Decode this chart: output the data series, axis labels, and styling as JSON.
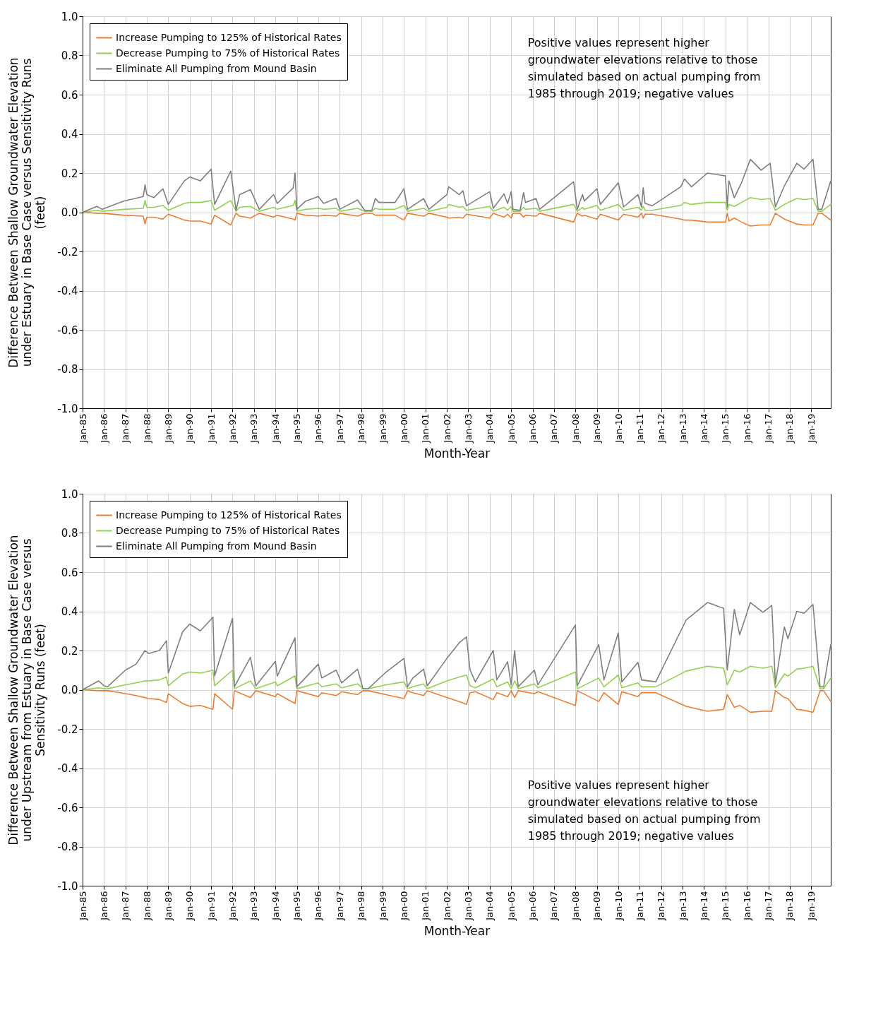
{
  "chart_data": [
    {
      "type": "line",
      "ylabel": "Difference Between Shallow Groundwater Elevation\nunder Estuary in Base Case versus Sensitivity Runs\n(feet)",
      "xlabel": "Month-Year",
      "annotations": [
        "Positive values represent higher\ngroundwater elevations relative to those\nsimulated based on actual pumping from\n1985 through 2019; negative values"
      ],
      "legend": "top left",
      "grid": true,
      "ylim": [
        -1,
        1
      ],
      "yticks": [
        {
          "value": -1,
          "label": "-1.0"
        },
        {
          "value": -0.8,
          "label": "-0.8"
        },
        {
          "value": -0.6,
          "label": "-0.6"
        },
        {
          "value": -0.4,
          "label": "-0.4"
        },
        {
          "value": -0.2,
          "label": "-0.2"
        },
        {
          "value": 0,
          "label": "0.0"
        },
        {
          "value": 0.2,
          "label": "0.2"
        },
        {
          "value": 0.4,
          "label": "0.4"
        },
        {
          "value": 0.6,
          "label": "0.6"
        },
        {
          "value": 0.8,
          "label": "0.8"
        },
        {
          "value": 1,
          "label": "1.0"
        }
      ],
      "xlim": [
        "1985-01",
        "2019-12"
      ],
      "xticks": [
        {
          "value": "1985-01",
          "label": "Jan-85"
        },
        {
          "value": "1986-01",
          "label": "Jan-86"
        },
        {
          "value": "1987-01",
          "label": "Jan-87"
        },
        {
          "value": "1988-01",
          "label": "Jan-88"
        },
        {
          "value": "1989-01",
          "label": "Jan-89"
        },
        {
          "value": "1990-01",
          "label": "Jan-90"
        },
        {
          "value": "1991-01",
          "label": "Jan-91"
        },
        {
          "value": "1992-01",
          "label": "Jan-92"
        },
        {
          "value": "1993-01",
          "label": "Jan-93"
        },
        {
          "value": "1994-01",
          "label": "Jan-94"
        },
        {
          "value": "1995-01",
          "label": "Jan-95"
        },
        {
          "value": "1996-01",
          "label": "Jan-96"
        },
        {
          "value": "1997-01",
          "label": "Jan-97"
        },
        {
          "value": "1998-01",
          "label": "Jan-98"
        },
        {
          "value": "1999-01",
          "label": "Jan-99"
        },
        {
          "value": "2000-01",
          "label": "Jan-00"
        },
        {
          "value": "2001-01",
          "label": "Jan-01"
        },
        {
          "value": "2002-01",
          "label": "Jan-02"
        },
        {
          "value": "2003-01",
          "label": "Jan-03"
        },
        {
          "value": "2004-01",
          "label": "Jan-04"
        },
        {
          "value": "2005-01",
          "label": "Jan-05"
        },
        {
          "value": "2006-01",
          "label": "Jan-06"
        },
        {
          "value": "2007-01",
          "label": "Jan-07"
        },
        {
          "value": "2008-01",
          "label": "Jan-08"
        },
        {
          "value": "2009-01",
          "label": "Jan-09"
        },
        {
          "value": "2010-01",
          "label": "Jan-10"
        },
        {
          "value": "2011-01",
          "label": "Jan-11"
        },
        {
          "value": "2012-01",
          "label": "Jan-12"
        },
        {
          "value": "2013-01",
          "label": "Jan-13"
        },
        {
          "value": "2014-01",
          "label": "Jan-14"
        },
        {
          "value": "2015-01",
          "label": "Jan-15"
        },
        {
          "value": "2016-01",
          "label": "Jan-16"
        },
        {
          "value": "2017-01",
          "label": "Jan-17"
        },
        {
          "value": "2018-01",
          "label": "Jan-18"
        },
        {
          "value": "2019-01",
          "label": "Jan-19"
        }
      ],
      "x": [
        "1985-01",
        "1985-09",
        "1985-12",
        "1986-12",
        "1987-11",
        "1987-12",
        "1988-01",
        "1988-05",
        "1988-10",
        "1989-01",
        "1989-10",
        "1990-01",
        "1990-07",
        "1991-01",
        "1991-03",
        "1991-12",
        "1992-03",
        "1992-05",
        "1992-11",
        "1993-04",
        "1993-12",
        "1994-02",
        "1994-11",
        "1994-12",
        "1995-01",
        "1995-06",
        "1996-01",
        "1996-04",
        "1996-11",
        "1997-01",
        "1997-11",
        "1998-03",
        "1998-07",
        "1998-09",
        "1998-11",
        "1999-08",
        "2000-01",
        "2000-03",
        "2000-12",
        "2001-03",
        "2002-01",
        "2002-02",
        "2002-08",
        "2002-10",
        "2002-12",
        "2004-01",
        "2004-03",
        "2004-09",
        "2004-11",
        "2005-01",
        "2005-02",
        "2005-06",
        "2005-08",
        "2005-09",
        "2006-03",
        "2006-05",
        "2007-12",
        "2008-02",
        "2008-05",
        "2008-06",
        "2009-01",
        "2009-03",
        "2010-01",
        "2010-04",
        "2010-12",
        "2011-02",
        "2011-03",
        "2011-04",
        "2011-08",
        "2012-12",
        "2013-02",
        "2013-06",
        "2014-03",
        "2015-01",
        "2015-02",
        "2015-03",
        "2015-06",
        "2015-10",
        "2016-03",
        "2016-09",
        "2017-02",
        "2017-05",
        "2017-10",
        "2018-05",
        "2018-09",
        "2019-02",
        "2019-05",
        "2019-07",
        "2019-12"
      ],
      "series": [
        {
          "name": "Increase Pumping to 125% of Historical Rates",
          "color": "#ed7d31",
          "values": [
            0,
            -0.005,
            -0.005,
            -0.015,
            -0.02,
            -0.06,
            -0.025,
            -0.025,
            -0.035,
            -0.01,
            -0.04,
            -0.045,
            -0.045,
            -0.06,
            -0.015,
            -0.065,
            -0.005,
            -0.02,
            -0.03,
            -0.005,
            -0.025,
            -0.015,
            -0.035,
            -0.04,
            -0.005,
            -0.015,
            -0.02,
            -0.015,
            -0.02,
            -0.005,
            -0.02,
            -0.005,
            -0.005,
            -0.015,
            -0.015,
            -0.015,
            -0.04,
            -0.005,
            -0.02,
            -0.005,
            -0.025,
            -0.03,
            -0.025,
            -0.03,
            -0.01,
            -0.03,
            -0.005,
            -0.025,
            -0.01,
            -0.03,
            -0.005,
            -0.005,
            -0.025,
            -0.015,
            -0.02,
            -0.005,
            -0.05,
            -0.005,
            -0.02,
            -0.015,
            -0.035,
            -0.01,
            -0.04,
            -0.01,
            -0.025,
            -0.005,
            -0.03,
            -0.01,
            -0.01,
            -0.035,
            -0.04,
            -0.04,
            -0.05,
            -0.05,
            -0.005,
            -0.045,
            -0.03,
            -0.05,
            -0.07,
            -0.065,
            -0.065,
            -0.005,
            -0.035,
            -0.06,
            -0.065,
            -0.065,
            -0.005,
            -0.005,
            -0.04
          ]
        },
        {
          "name": "Decrease Pumping to 75% of Historical Rates",
          "color": "#92d050",
          "values": [
            0,
            0.01,
            0.005,
            0.015,
            0.02,
            0.06,
            0.025,
            0.025,
            0.035,
            0.01,
            0.045,
            0.05,
            0.05,
            0.06,
            0.01,
            0.06,
            0.005,
            0.025,
            0.03,
            0.005,
            0.025,
            0.015,
            0.035,
            0.06,
            0.005,
            0.015,
            0.02,
            0.015,
            0.02,
            0.005,
            0.02,
            0.005,
            0.005,
            0.02,
            0.015,
            0.015,
            0.035,
            0.005,
            0.02,
            0.005,
            0.025,
            0.04,
            0.025,
            0.03,
            0.01,
            0.03,
            0.005,
            0.025,
            0.01,
            0.03,
            0.005,
            0.005,
            0.025,
            0.015,
            0.02,
            0.005,
            0.04,
            0.005,
            0.025,
            0.015,
            0.035,
            0.01,
            0.04,
            0.01,
            0.025,
            0.01,
            0.03,
            0.01,
            0.01,
            0.035,
            0.05,
            0.04,
            0.05,
            0.05,
            0.01,
            0.04,
            0.03,
            0.05,
            0.075,
            0.065,
            0.07,
            0.01,
            0.04,
            0.07,
            0.065,
            0.07,
            0.005,
            0.005,
            0.04
          ]
        },
        {
          "name": "Eliminate All Pumping from Mound Basin",
          "color": "#7f7f7f",
          "values": [
            0,
            0.03,
            0.015,
            0.057,
            0.08,
            0.14,
            0.09,
            0.075,
            0.12,
            0.04,
            0.16,
            0.18,
            0.16,
            0.22,
            0.04,
            0.21,
            0.01,
            0.09,
            0.115,
            0.015,
            0.09,
            0.045,
            0.125,
            0.2,
            0.015,
            0.057,
            0.08,
            0.045,
            0.07,
            0.015,
            0.063,
            0.01,
            0.01,
            0.07,
            0.05,
            0.05,
            0.12,
            0.015,
            0.07,
            0.015,
            0.09,
            0.13,
            0.09,
            0.11,
            0.033,
            0.105,
            0.02,
            0.094,
            0.045,
            0.105,
            0.015,
            0.01,
            0.1,
            0.05,
            0.07,
            0.015,
            0.155,
            0.015,
            0.09,
            0.057,
            0.12,
            0.04,
            0.15,
            0.027,
            0.09,
            0.027,
            0.125,
            0.045,
            0.033,
            0.13,
            0.17,
            0.13,
            0.2,
            0.185,
            0.027,
            0.16,
            0.074,
            0.15,
            0.27,
            0.215,
            0.25,
            0.027,
            0.135,
            0.25,
            0.22,
            0.27,
            0.015,
            0.015,
            0.16
          ]
        }
      ]
    },
    {
      "type": "line",
      "ylabel": "Difference Between Shallow Groundwater Elevation\nunder Upstream from Estuary in Base Case versus\nSensitivity Runs (feet)",
      "xlabel": "Month-Year",
      "annotations": [
        "Positive values represent higher\ngroundwater elevations relative to those\nsimulated based on actual pumping from\n1985 through 2019; negative values"
      ],
      "legend": "top left",
      "grid": true,
      "ylim": [
        -1,
        1
      ],
      "yticks": [
        {
          "value": -1,
          "label": "-1.0"
        },
        {
          "value": -0.8,
          "label": "-0.8"
        },
        {
          "value": -0.6,
          "label": "-0.6"
        },
        {
          "value": -0.4,
          "label": "-0.4"
        },
        {
          "value": -0.2,
          "label": "-0.2"
        },
        {
          "value": 0,
          "label": "0.0"
        },
        {
          "value": 0.2,
          "label": "0.2"
        },
        {
          "value": 0.4,
          "label": "0.4"
        },
        {
          "value": 0.6,
          "label": "0.6"
        },
        {
          "value": 0.8,
          "label": "0.8"
        },
        {
          "value": 1,
          "label": "1.0"
        }
      ],
      "xlim": [
        "1985-01",
        "2019-12"
      ],
      "xticks": [
        {
          "value": "1985-01",
          "label": "Jan-85"
        },
        {
          "value": "1986-01",
          "label": "Jan-86"
        },
        {
          "value": "1987-01",
          "label": "Jan-87"
        },
        {
          "value": "1988-01",
          "label": "Jan-88"
        },
        {
          "value": "1989-01",
          "label": "Jan-89"
        },
        {
          "value": "1990-01",
          "label": "Jan-90"
        },
        {
          "value": "1991-01",
          "label": "Jan-91"
        },
        {
          "value": "1992-01",
          "label": "Jan-92"
        },
        {
          "value": "1993-01",
          "label": "Jan-93"
        },
        {
          "value": "1994-01",
          "label": "Jan-94"
        },
        {
          "value": "1995-01",
          "label": "Jan-95"
        },
        {
          "value": "1996-01",
          "label": "Jan-96"
        },
        {
          "value": "1997-01",
          "label": "Jan-97"
        },
        {
          "value": "1998-01",
          "label": "Jan-98"
        },
        {
          "value": "1999-01",
          "label": "Jan-99"
        },
        {
          "value": "2000-01",
          "label": "Jan-00"
        },
        {
          "value": "2001-01",
          "label": "Jan-01"
        },
        {
          "value": "2002-01",
          "label": "Jan-02"
        },
        {
          "value": "2003-01",
          "label": "Jan-03"
        },
        {
          "value": "2004-01",
          "label": "Jan-04"
        },
        {
          "value": "2005-01",
          "label": "Jan-05"
        },
        {
          "value": "2006-01",
          "label": "Jan-06"
        },
        {
          "value": "2007-01",
          "label": "Jan-07"
        },
        {
          "value": "2008-01",
          "label": "Jan-08"
        },
        {
          "value": "2009-01",
          "label": "Jan-09"
        },
        {
          "value": "2010-01",
          "label": "Jan-10"
        },
        {
          "value": "2011-01",
          "label": "Jan-11"
        },
        {
          "value": "2012-01",
          "label": "Jan-12"
        },
        {
          "value": "2013-01",
          "label": "Jan-13"
        },
        {
          "value": "2014-01",
          "label": "Jan-14"
        },
        {
          "value": "2015-01",
          "label": "Jan-15"
        },
        {
          "value": "2016-01",
          "label": "Jan-16"
        },
        {
          "value": "2017-01",
          "label": "Jan-17"
        },
        {
          "value": "2018-01",
          "label": "Jan-18"
        },
        {
          "value": "2019-01",
          "label": "Jan-19"
        }
      ],
      "x": [
        "1985-01",
        "1985-10",
        "1986-01",
        "1986-03",
        "1987-01",
        "1987-07",
        "1987-12",
        "1988-02",
        "1988-08",
        "1988-12",
        "1989-01",
        "1989-09",
        "1990-01",
        "1990-07",
        "1991-02",
        "1991-03",
        "1992-01",
        "1992-02",
        "1992-11",
        "1993-02",
        "1994-01",
        "1994-02",
        "1994-12",
        "1995-01",
        "1996-01",
        "1996-03",
        "1996-11",
        "1997-02",
        "1997-11",
        "1998-02",
        "1998-05",
        "1999-03",
        "2000-01",
        "2000-03",
        "2000-06",
        "2000-12",
        "2001-02",
        "2002-01",
        "2002-08",
        "2002-12",
        "2003-02",
        "2003-05",
        "2004-03",
        "2004-05",
        "2004-11",
        "2005-01",
        "2005-03",
        "2005-05",
        "2006-02",
        "2006-04",
        "2008-01",
        "2008-02",
        "2009-02",
        "2009-05",
        "2010-01",
        "2010-03",
        "2010-12",
        "2011-02",
        "2011-10",
        "2013-03",
        "2014-03",
        "2014-12",
        "2015-02",
        "2015-06",
        "2015-09",
        "2016-03",
        "2016-10",
        "2017-03",
        "2017-05",
        "2017-10",
        "2017-12",
        "2018-05",
        "2018-09",
        "2019-02",
        "2019-06",
        "2019-08",
        "2019-12"
      ],
      "series": [
        {
          "name": "Increase Pumping to 125% of Historical Rates",
          "color": "#ed7d31",
          "values": [
            0,
            -0.005,
            -0.005,
            -0.005,
            -0.02,
            -0.03,
            -0.04,
            -0.045,
            -0.05,
            -0.065,
            -0.02,
            -0.07,
            -0.085,
            -0.08,
            -0.1,
            -0.02,
            -0.1,
            -0.005,
            -0.04,
            -0.005,
            -0.035,
            -0.02,
            -0.07,
            -0.005,
            -0.035,
            -0.015,
            -0.03,
            -0.01,
            -0.025,
            -0.005,
            -0.005,
            -0.025,
            -0.045,
            -0.005,
            -0.015,
            -0.03,
            -0.005,
            -0.04,
            -0.06,
            -0.075,
            -0.015,
            -0.01,
            -0.05,
            -0.015,
            -0.035,
            -0.005,
            -0.04,
            -0.005,
            -0.02,
            -0.01,
            -0.08,
            -0.005,
            -0.06,
            -0.015,
            -0.075,
            -0.01,
            -0.035,
            -0.015,
            -0.015,
            -0.085,
            -0.11,
            -0.1,
            -0.025,
            -0.09,
            -0.08,
            -0.115,
            -0.11,
            -0.11,
            -0.005,
            -0.04,
            -0.045,
            -0.1,
            -0.105,
            -0.115,
            -0.005,
            -0.005,
            -0.06
          ]
        },
        {
          "name": "Decrease Pumping to 75% of Historical Rates",
          "color": "#92d050",
          "values": [
            0,
            0.01,
            0.005,
            0.005,
            0.025,
            0.035,
            0.045,
            0.045,
            0.05,
            0.065,
            0.02,
            0.08,
            0.09,
            0.085,
            0.1,
            0.02,
            0.1,
            0.005,
            0.045,
            0.005,
            0.04,
            0.02,
            0.07,
            0.005,
            0.035,
            0.015,
            0.03,
            0.01,
            0.03,
            0.005,
            0.005,
            0.025,
            0.04,
            0.005,
            0.015,
            0.03,
            0.005,
            0.045,
            0.065,
            0.075,
            0.02,
            0.01,
            0.055,
            0.015,
            0.04,
            0.005,
            0.045,
            0.005,
            0.03,
            0.01,
            0.09,
            0.005,
            0.06,
            0.015,
            0.075,
            0.01,
            0.035,
            0.015,
            0.015,
            0.095,
            0.12,
            0.11,
            0.025,
            0.1,
            0.09,
            0.12,
            0.11,
            0.12,
            0.01,
            0.08,
            0.07,
            0.105,
            0.11,
            0.12,
            0.005,
            0.005,
            0.06
          ]
        },
        {
          "name": "Eliminate All Pumping from Mound Basin",
          "color": "#7f7f7f",
          "values": [
            0,
            0.045,
            0.02,
            0.015,
            0.1,
            0.13,
            0.2,
            0.185,
            0.2,
            0.25,
            0.085,
            0.295,
            0.335,
            0.3,
            0.37,
            0.07,
            0.365,
            0.015,
            0.165,
            0.02,
            0.145,
            0.07,
            0.265,
            0.015,
            0.13,
            0.06,
            0.1,
            0.035,
            0.105,
            0.005,
            0.005,
            0.09,
            0.16,
            0.015,
            0.06,
            0.105,
            0.02,
            0.16,
            0.24,
            0.27,
            0.1,
            0.04,
            0.2,
            0.05,
            0.143,
            0.025,
            0.2,
            0.015,
            0.1,
            0.025,
            0.33,
            0.02,
            0.23,
            0.05,
            0.29,
            0.04,
            0.14,
            0.05,
            0.04,
            0.355,
            0.445,
            0.415,
            0.1,
            0.41,
            0.28,
            0.445,
            0.395,
            0.43,
            0.03,
            0.32,
            0.26,
            0.4,
            0.39,
            0.435,
            0.015,
            0.015,
            0.23
          ]
        }
      ]
    }
  ]
}
